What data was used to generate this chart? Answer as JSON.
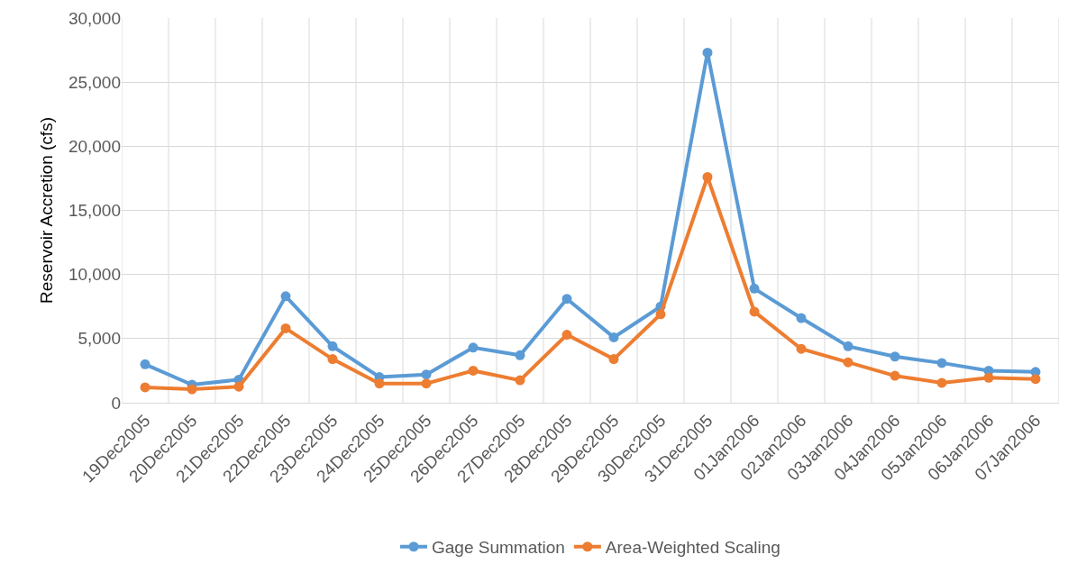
{
  "chart_data": {
    "type": "line",
    "ylabel": "Reservoir Accretion (cfs)",
    "categories": [
      "19Dec2005",
      "20Dec2005",
      "21Dec2005",
      "22Dec2005",
      "23Dec2005",
      "24Dec2005",
      "25Dec2005",
      "26Dec2005",
      "27Dec2005",
      "28Dec2005",
      "29Dec2005",
      "30Dec2005",
      "31Dec2005",
      "01Jan2006",
      "02Jan2006",
      "03Jan2006",
      "04Jan2006",
      "05Jan2006",
      "06Jan2006",
      "07Jan2006"
    ],
    "series": [
      {
        "name": "Gage Summation",
        "color": "#5b9bd5",
        "values": [
          3000,
          1400,
          1800,
          8300,
          4400,
          2000,
          2200,
          4300,
          3700,
          8100,
          5100,
          7500,
          27300,
          8900,
          6600,
          4400,
          3600,
          3100,
          2500,
          2400
        ]
      },
      {
        "name": "Area-Weighted Scaling",
        "color": "#ed7d31",
        "values": [
          1200,
          1050,
          1250,
          5800,
          3400,
          1500,
          1500,
          2500,
          1750,
          5300,
          3400,
          6900,
          17600,
          7100,
          4200,
          3150,
          2100,
          1550,
          1950,
          1850
        ]
      }
    ],
    "ylim": [
      0,
      30000
    ],
    "yticks": [
      {
        "value": 0,
        "label": "0"
      },
      {
        "value": 5000,
        "label": "5,000"
      },
      {
        "value": 10000,
        "label": "10,000"
      },
      {
        "value": 15000,
        "label": "15,000"
      },
      {
        "value": 20000,
        "label": "20,000"
      },
      {
        "value": 25000,
        "label": "25,000"
      },
      {
        "value": 30000,
        "label": "30,000"
      }
    ],
    "grid": true,
    "legend": "bottom",
    "marker": "circle",
    "line_style": "solid"
  }
}
